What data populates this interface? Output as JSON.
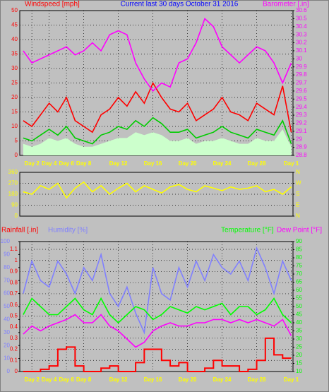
{
  "chart_data": [
    {
      "type": "line",
      "title": "Current last 30 days October 31 2016",
      "x": [
        0,
        1,
        2,
        3,
        4,
        5,
        6,
        7,
        8,
        9,
        10,
        11,
        12,
        13,
        14,
        15,
        16,
        17,
        18,
        19,
        20,
        21,
        22,
        23,
        24,
        25,
        26,
        27,
        28,
        29,
        30,
        31
      ],
      "xlim": [
        -0.4,
        31.2
      ],
      "xticks": [
        {
          "value": 1,
          "label": "Day 2"
        },
        {
          "value": 3,
          "label": "Day 4"
        },
        {
          "value": 5,
          "label": "Day 6"
        },
        {
          "value": 7,
          "label": "Day 8"
        },
        {
          "value": 11,
          "label": "Day 12"
        },
        {
          "value": 15,
          "label": "Day 16"
        },
        {
          "value": 19,
          "label": "Day 20"
        },
        {
          "value": 23,
          "label": "Day 24"
        },
        {
          "value": 27,
          "label": "Day 28"
        },
        {
          "value": 31,
          "label": "Day 1"
        }
      ],
      "ylim": [
        0,
        50
      ],
      "yticks": [
        0,
        5,
        10,
        15,
        20,
        25,
        30,
        35,
        40,
        45,
        50
      ],
      "y2lim": [
        28.8,
        30.6
      ],
      "y2ticks": [
        28.8,
        28.9,
        29,
        29.1,
        29.2,
        29.3,
        29.4,
        29.5,
        29.6,
        29.7,
        29.8,
        29.9,
        30,
        30.1,
        30.2,
        30.3,
        30.4,
        30.5,
        30.6
      ],
      "axis_colors": {
        "y": "#ff0000",
        "y2": "#ff00ff"
      },
      "grid": true,
      "series": [
        {
          "kind": "area",
          "color": "#ccffcc",
          "values": [
            4,
            3,
            4,
            6,
            5,
            6,
            4,
            3,
            3,
            4,
            5,
            6,
            6,
            8,
            7,
            8,
            7,
            5,
            5,
            6,
            4,
            5,
            5,
            6,
            5,
            4,
            4,
            6,
            5,
            5,
            9,
            3
          ]
        },
        {
          "name": "Windspeed [mph]",
          "kind": "line",
          "color": "#ff0000",
          "values": [
            12,
            10,
            14,
            18,
            15,
            20,
            12,
            10,
            8,
            14,
            16,
            20,
            17,
            22,
            18,
            25,
            20,
            16,
            15,
            18,
            12,
            14,
            16,
            20,
            15,
            14,
            12,
            18,
            16,
            14,
            24,
            8
          ]
        },
        {
          "kind": "line",
          "color": "#00cc00",
          "values": [
            6,
            5,
            7,
            9,
            7,
            10,
            6,
            5,
            4,
            7,
            8,
            10,
            9,
            12,
            10,
            13,
            11,
            8,
            8,
            9,
            6,
            7,
            8,
            10,
            8,
            7,
            6,
            9,
            8,
            7,
            12,
            4
          ]
        },
        {
          "name": "Barometer [.in]",
          "kind": "line",
          "axis": "y2",
          "color": "#ff00ff",
          "values": [
            30.1,
            29.95,
            30,
            30.05,
            30.1,
            30.15,
            30.05,
            30.1,
            30.2,
            30.1,
            30.3,
            30.35,
            30.3,
            29.95,
            29.75,
            29.6,
            29.7,
            29.65,
            29.95,
            30,
            30.2,
            30.5,
            30.4,
            30.15,
            30.05,
            29.95,
            30.05,
            30.15,
            30.1,
            29.95,
            29.7,
            29.95
          ]
        }
      ]
    },
    {
      "type": "line",
      "x": [
        0,
        1,
        2,
        3,
        4,
        5,
        6,
        7,
        8,
        9,
        10,
        11,
        12,
        13,
        14,
        15,
        16,
        17,
        18,
        19,
        20,
        21,
        22,
        23,
        24,
        25,
        26,
        27,
        28,
        29,
        30,
        31
      ],
      "xlim": [
        -0.4,
        31.2
      ],
      "ylim": [
        0,
        360
      ],
      "yticks": [
        0,
        90,
        180,
        270,
        360
      ],
      "y2lim": [
        0,
        360
      ],
      "y2ticks": [
        {
          "value": 0,
          "label": "N"
        },
        {
          "value": 90,
          "label": "E"
        },
        {
          "value": 180,
          "label": "S"
        },
        {
          "value": 270,
          "label": "W"
        },
        {
          "value": 360,
          "label": "N"
        }
      ],
      "axis_colors": {
        "y": "#ffff00",
        "y2": "#ffff00"
      },
      "grid": true,
      "series": [
        {
          "kind": "line",
          "color": "#ffff00",
          "values": [
            200,
            180,
            250,
            220,
            270,
            150,
            230,
            280,
            200,
            250,
            180,
            230,
            270,
            200,
            250,
            220,
            190,
            240,
            260,
            220,
            200,
            250,
            230,
            210,
            240,
            220,
            230,
            250,
            200,
            220,
            180,
            240
          ]
        }
      ]
    },
    {
      "type": "line",
      "x": [
        0,
        1,
        2,
        3,
        4,
        5,
        6,
        7,
        8,
        9,
        10,
        11,
        12,
        13,
        14,
        15,
        16,
        17,
        18,
        19,
        20,
        21,
        22,
        23,
        24,
        25,
        26,
        27,
        28,
        29,
        30,
        31
      ],
      "xlim": [
        -0.4,
        31.2
      ],
      "xticks": [
        {
          "value": 1,
          "label": "Day 2"
        },
        {
          "value": 3,
          "label": "Day 4"
        },
        {
          "value": 5,
          "label": "Day 6"
        },
        {
          "value": 7,
          "label": "Day 8"
        },
        {
          "value": 11,
          "label": "Day 12"
        },
        {
          "value": 15,
          "label": "Day 16"
        },
        {
          "value": 19,
          "label": "Day 20"
        },
        {
          "value": 23,
          "label": "Day 24"
        },
        {
          "value": 27,
          "label": "Day 28"
        },
        {
          "value": 31,
          "label": "Day 1"
        }
      ],
      "ylim": [
        0,
        1.17
      ],
      "yticks": [
        0,
        0.1,
        0.2,
        0.3,
        0.4,
        0.5,
        0.6,
        0.7,
        0.8,
        0.9,
        1,
        1.1
      ],
      "y2lim": [
        10,
        90
      ],
      "y2ticks": [
        10,
        15,
        20,
        25,
        30,
        35,
        40,
        45,
        50,
        55,
        60,
        65,
        70,
        75,
        80,
        85,
        90
      ],
      "y3lim": [
        0,
        100
      ],
      "y3ticks": [
        0,
        10,
        20,
        30,
        40,
        50,
        60,
        70,
        80,
        90,
        100
      ],
      "axis_colors": {
        "y": "#ff0000",
        "y2": "#00ff00",
        "y3": "#8080ff"
      },
      "grid": true,
      "series": [
        {
          "name": "Humidity [%]",
          "kind": "line",
          "axis": "y3",
          "color": "#8080ff",
          "values": [
            60,
            85,
            70,
            65,
            85,
            75,
            60,
            80,
            70,
            90,
            60,
            50,
            65,
            45,
            30,
            80,
            60,
            55,
            80,
            65,
            85,
            70,
            90,
            80,
            75,
            85,
            70,
            95,
            80,
            60,
            85,
            70
          ]
        },
        {
          "name": "Dew Point [°F]",
          "kind": "line",
          "axis": "y2",
          "color": "#ff00ff",
          "values": [
            33,
            38,
            35,
            38,
            40,
            42,
            45,
            40,
            40,
            45,
            38,
            35,
            30,
            25,
            28,
            35,
            38,
            40,
            38,
            38,
            40,
            40,
            42,
            42,
            40,
            42,
            40,
            42,
            40,
            38,
            42,
            32
          ]
        },
        {
          "name": "Temperature [°F]",
          "kind": "line",
          "axis": "y2",
          "color": "#00ff00",
          "values": [
            45,
            55,
            50,
            45,
            45,
            50,
            55,
            48,
            45,
            55,
            45,
            40,
            45,
            50,
            48,
            42,
            45,
            50,
            48,
            46,
            50,
            48,
            50,
            52,
            45,
            50,
            50,
            45,
            48,
            55,
            45,
            40
          ]
        },
        {
          "name": "Rainfall [.in]",
          "kind": "step",
          "color": "#ff0000",
          "values": [
            0,
            0,
            0.02,
            0.05,
            0.2,
            0.22,
            0.05,
            0,
            0,
            0.03,
            0.05,
            0,
            0,
            0.08,
            0.2,
            0.2,
            0.1,
            0.05,
            0.08,
            0,
            0,
            0.03,
            0.1,
            0.05,
            0.05,
            0,
            0.02,
            0.1,
            0.3,
            0.15,
            0.12,
            0.12
          ]
        }
      ]
    }
  ]
}
